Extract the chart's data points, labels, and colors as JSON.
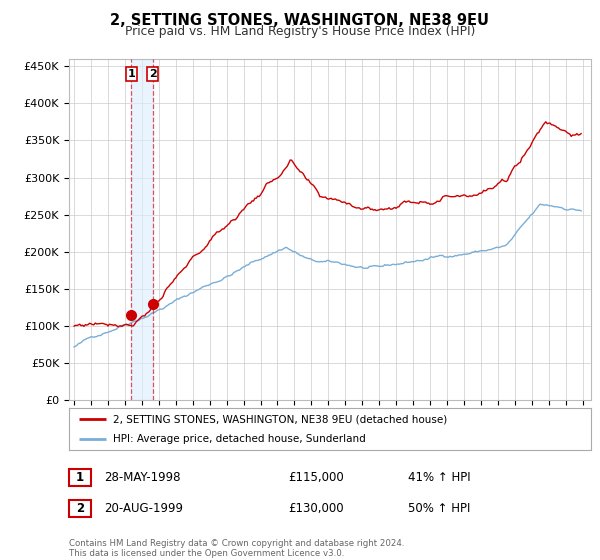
{
  "title": "2, SETTING STONES, WASHINGTON, NE38 9EU",
  "subtitle": "Price paid vs. HM Land Registry's House Price Index (HPI)",
  "ylabel_ticks": [
    "£0",
    "£50K",
    "£100K",
    "£150K",
    "£200K",
    "£250K",
    "£300K",
    "£350K",
    "£400K",
    "£450K"
  ],
  "ytick_values": [
    0,
    50000,
    100000,
    150000,
    200000,
    250000,
    300000,
    350000,
    400000,
    450000
  ],
  "ylim": [
    0,
    460000
  ],
  "xlim_start": 1994.7,
  "xlim_end": 2025.5,
  "purchase1_date": 1998.38,
  "purchase1_price": 115000,
  "purchase1_label": "1",
  "purchase2_date": 1999.63,
  "purchase2_price": 130000,
  "purchase2_label": "2",
  "legend_line1": "2, SETTING STONES, WASHINGTON, NE38 9EU (detached house)",
  "legend_line2": "HPI: Average price, detached house, Sunderland",
  "table_row1_label": "1",
  "table_row1_date": "28-MAY-1998",
  "table_row1_price": "£115,000",
  "table_row1_hpi": "41% ↑ HPI",
  "table_row2_label": "2",
  "table_row2_date": "20-AUG-1999",
  "table_row2_price": "£130,000",
  "table_row2_hpi": "50% ↑ HPI",
  "footer": "Contains HM Land Registry data © Crown copyright and database right 2024.\nThis data is licensed under the Open Government Licence v3.0.",
  "red_color": "#cc0000",
  "blue_color": "#7aaed6",
  "background_color": "#ffffff",
  "grid_color": "#cccccc",
  "shading_color": "#ddeeff"
}
